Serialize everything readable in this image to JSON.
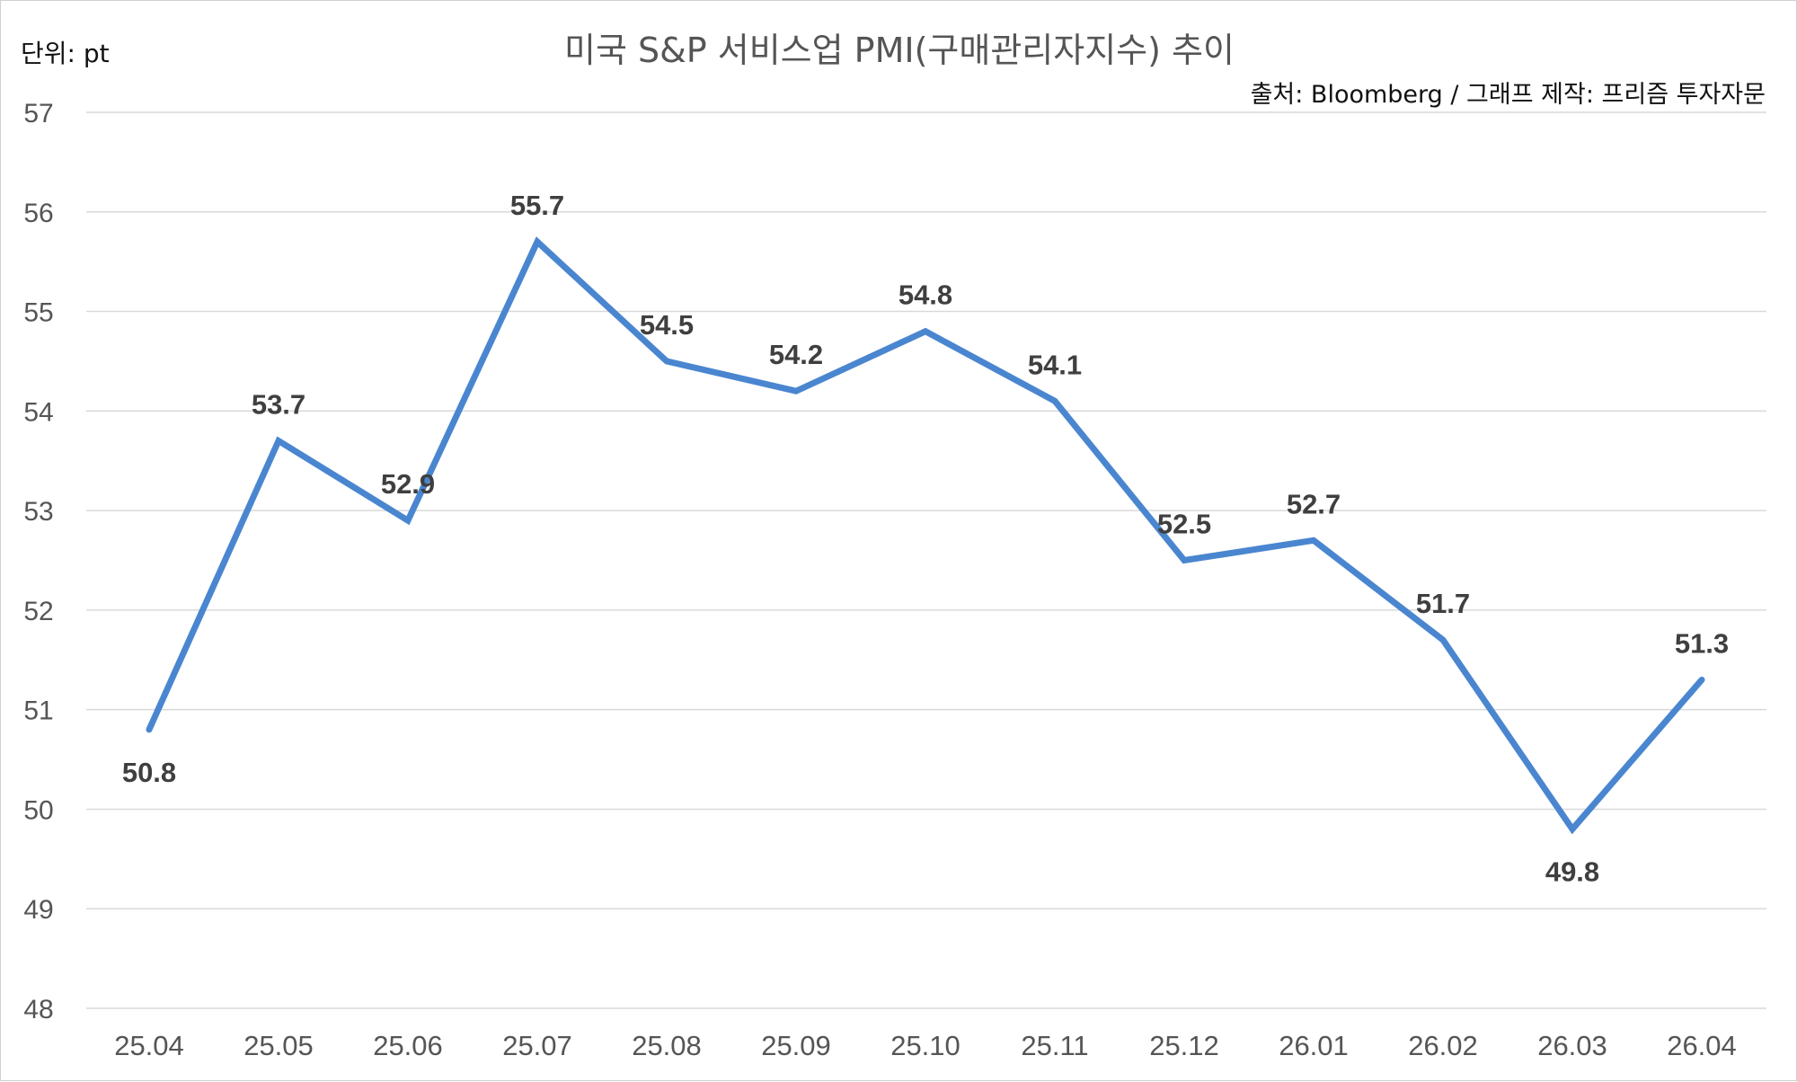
{
  "chart_data": {
    "type": "line",
    "title": "미국 S&P 서비스업 PMI(구매관리자지수) 추이",
    "unit_label": "단위: pt",
    "source": "출처: Bloomberg / 그래프 제작: 프리즘 투자자문",
    "categories": [
      "25.04",
      "25.05",
      "25.06",
      "25.07",
      "25.08",
      "25.09",
      "25.10",
      "25.11",
      "25.12",
      "26.01",
      "26.02",
      "26.03",
      "26.04"
    ],
    "series": [
      {
        "values": [
          50.8,
          53.7,
          52.9,
          55.7,
          54.5,
          54.2,
          54.8,
          54.1,
          52.5,
          52.7,
          51.7,
          49.8,
          51.3
        ]
      }
    ],
    "ylim": [
      48,
      57
    ],
    "yticks": [
      48,
      49,
      50,
      51,
      52,
      53,
      54,
      55,
      56,
      57
    ],
    "grid": true,
    "legend": "none",
    "line_color": "#4a86d0",
    "label_color": "#3f3f3f"
  }
}
